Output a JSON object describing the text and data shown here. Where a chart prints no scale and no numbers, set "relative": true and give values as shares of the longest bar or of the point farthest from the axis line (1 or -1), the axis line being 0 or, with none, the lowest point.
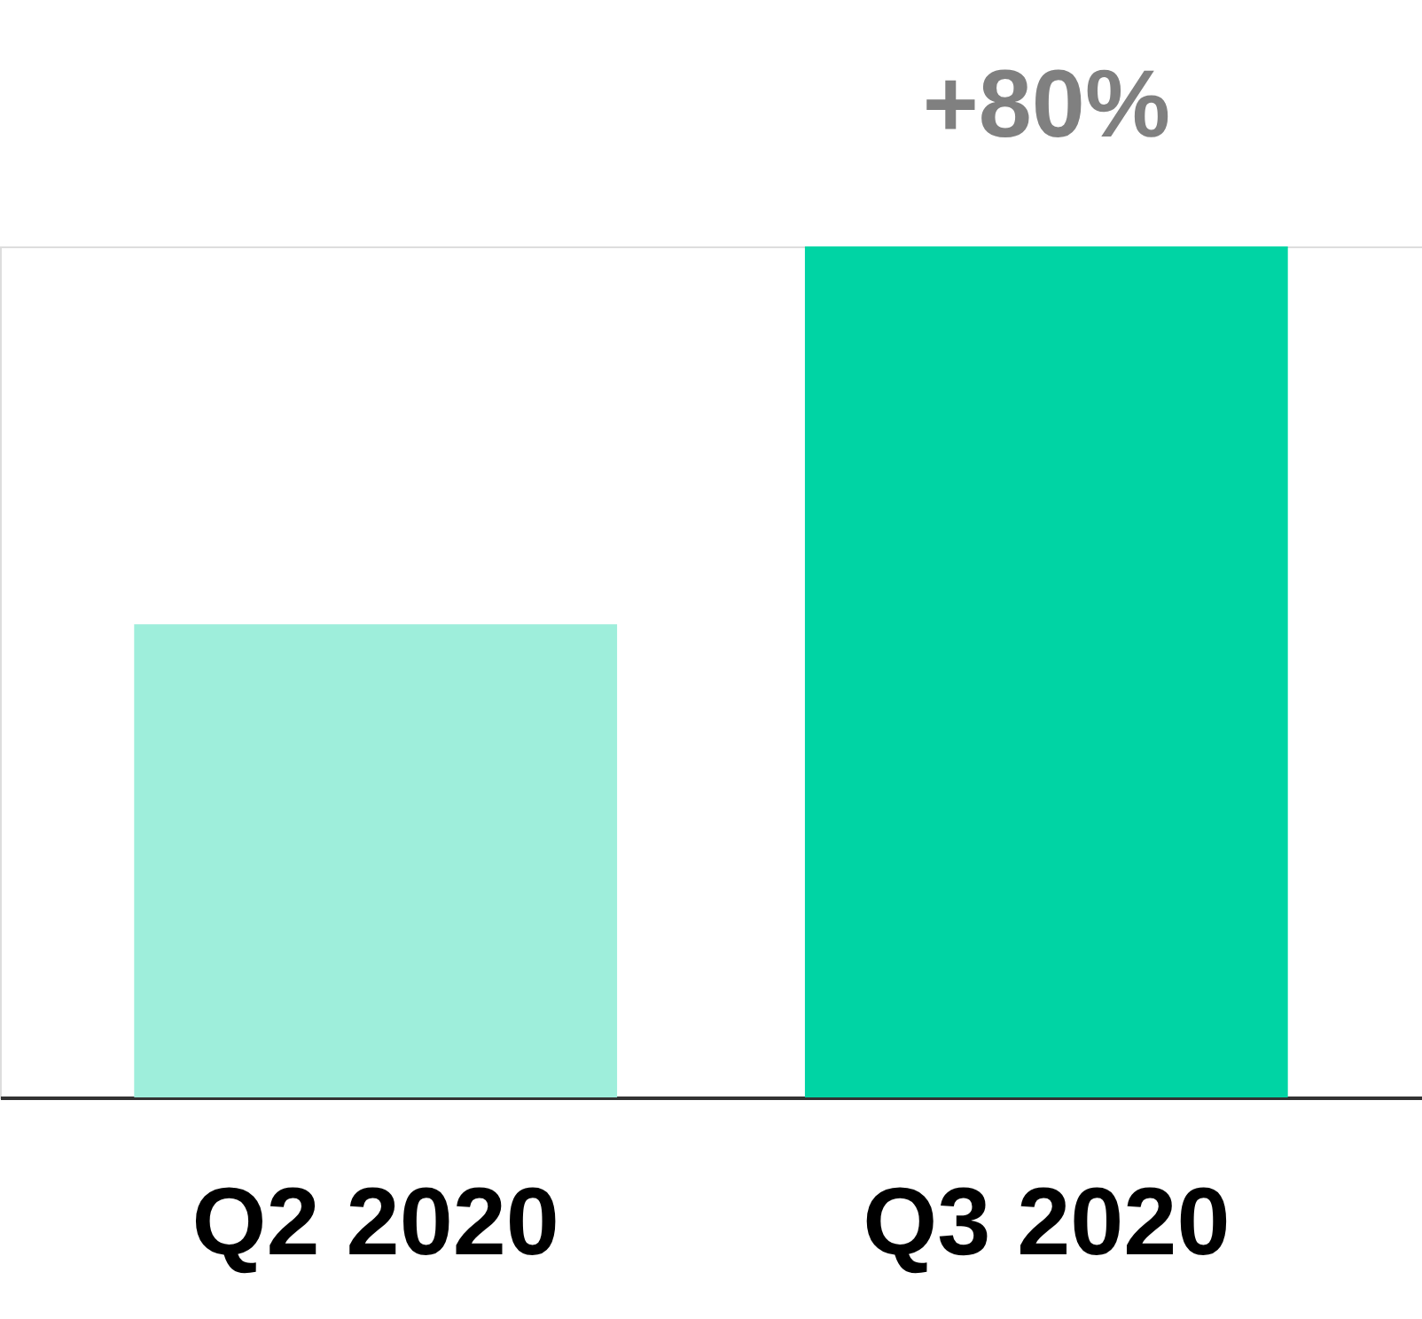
{
  "chart_data": {
    "type": "bar",
    "relative": true,
    "categories": [
      "Q2 2020",
      "Q3 2020"
    ],
    "values": [
      0.556,
      1
    ],
    "colors": [
      "#9eeedb",
      "#00d4a4"
    ],
    "annotations": [
      {
        "text": "+80%",
        "x": "Q3 2020",
        "y": 1
      }
    ]
  }
}
